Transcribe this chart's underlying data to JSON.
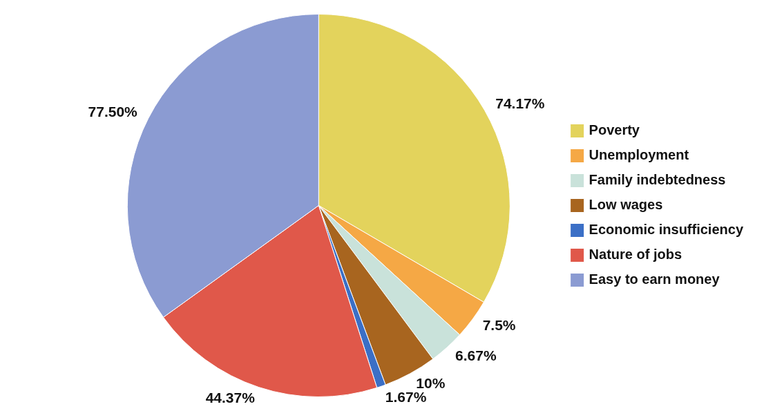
{
  "chart_data": {
    "type": "pie",
    "categories": [
      "Poverty",
      "Unemployment",
      "Family indebtedness",
      "Low wages",
      "Economic insufficiency",
      "Nature of jobs",
      "Easy to earn money"
    ],
    "values": [
      74.17,
      7.5,
      6.67,
      10,
      1.67,
      44.37,
      77.5
    ],
    "value_labels": [
      "74.17%",
      "7.5%",
      "6.67%",
      "10%",
      "1.67%",
      "44.37%",
      "77.50%"
    ],
    "colors": [
      "#e3d35c",
      "#f5a845",
      "#c9e2da",
      "#a8651f",
      "#3b6fc6",
      "#e0584a",
      "#8b9bd2"
    ],
    "legend": "right"
  }
}
